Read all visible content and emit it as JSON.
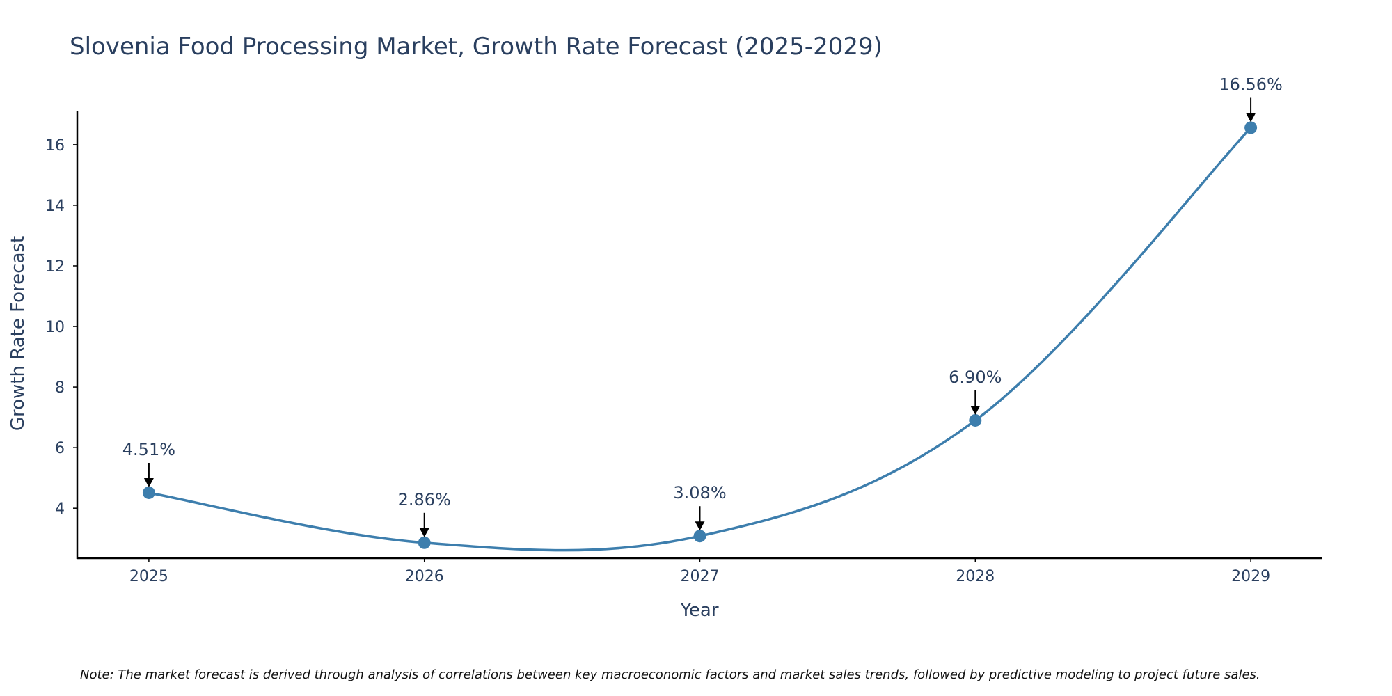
{
  "chart_data": {
    "type": "line",
    "title": "Slovenia Food Processing Market, Growth Rate Forecast (2025-2029)",
    "xlabel": "Year",
    "ylabel": "Growth Rate Forecast",
    "categories": [
      "2025",
      "2026",
      "2027",
      "2028",
      "2029"
    ],
    "values": [
      4.51,
      2.86,
      3.08,
      6.9,
      16.56
    ],
    "data_labels": [
      "4.51%",
      "2.86%",
      "3.08%",
      "6.90%",
      "16.56%"
    ],
    "y_ticks": [
      4,
      6,
      8,
      10,
      12,
      14,
      16
    ],
    "ylim": [
      2.35,
      17.1
    ],
    "xlim": [
      2024.74,
      2029.26
    ],
    "grid": false,
    "line_color": "#3d7ead",
    "marker_color": "#3d7ead",
    "arrow_color": "#000000",
    "note": "Note: The market forecast is derived through analysis of correlations between key macroeconomic factors and market sales trends, followed by predictive modeling to project future sales."
  }
}
